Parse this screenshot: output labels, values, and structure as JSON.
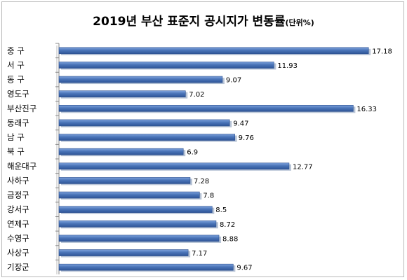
{
  "chart_data": {
    "type": "bar",
    "orientation": "horizontal",
    "title": "2019년 부산 표준지 공시지가 변동률",
    "unit_note": "(단위%)",
    "categories": [
      "중 구",
      "서 구",
      "동 구",
      "영도구",
      "부산진구",
      "동래구",
      "남 구",
      "북 구",
      "해운대구",
      "사하구",
      "금정구",
      "강서구",
      "연제구",
      "수영구",
      "사상구",
      "기장군"
    ],
    "values": [
      17.18,
      11.93,
      9.07,
      7.02,
      16.33,
      9.47,
      9.76,
      6.9,
      12.77,
      7.28,
      7.8,
      8.5,
      8.72,
      8.88,
      7.17,
      9.67
    ],
    "value_labels": [
      "17.18",
      "11.93",
      "9.07",
      "7.02",
      "16.33",
      "9.47",
      "9.76",
      "6.9",
      "12.77",
      "7.28",
      "7.8",
      "8.5",
      "8.72",
      "8.88",
      "7.17",
      "9.67"
    ],
    "xlim": [
      0,
      17.6
    ],
    "grid": false,
    "legend": "none",
    "bar_color": "#4a74b8"
  }
}
